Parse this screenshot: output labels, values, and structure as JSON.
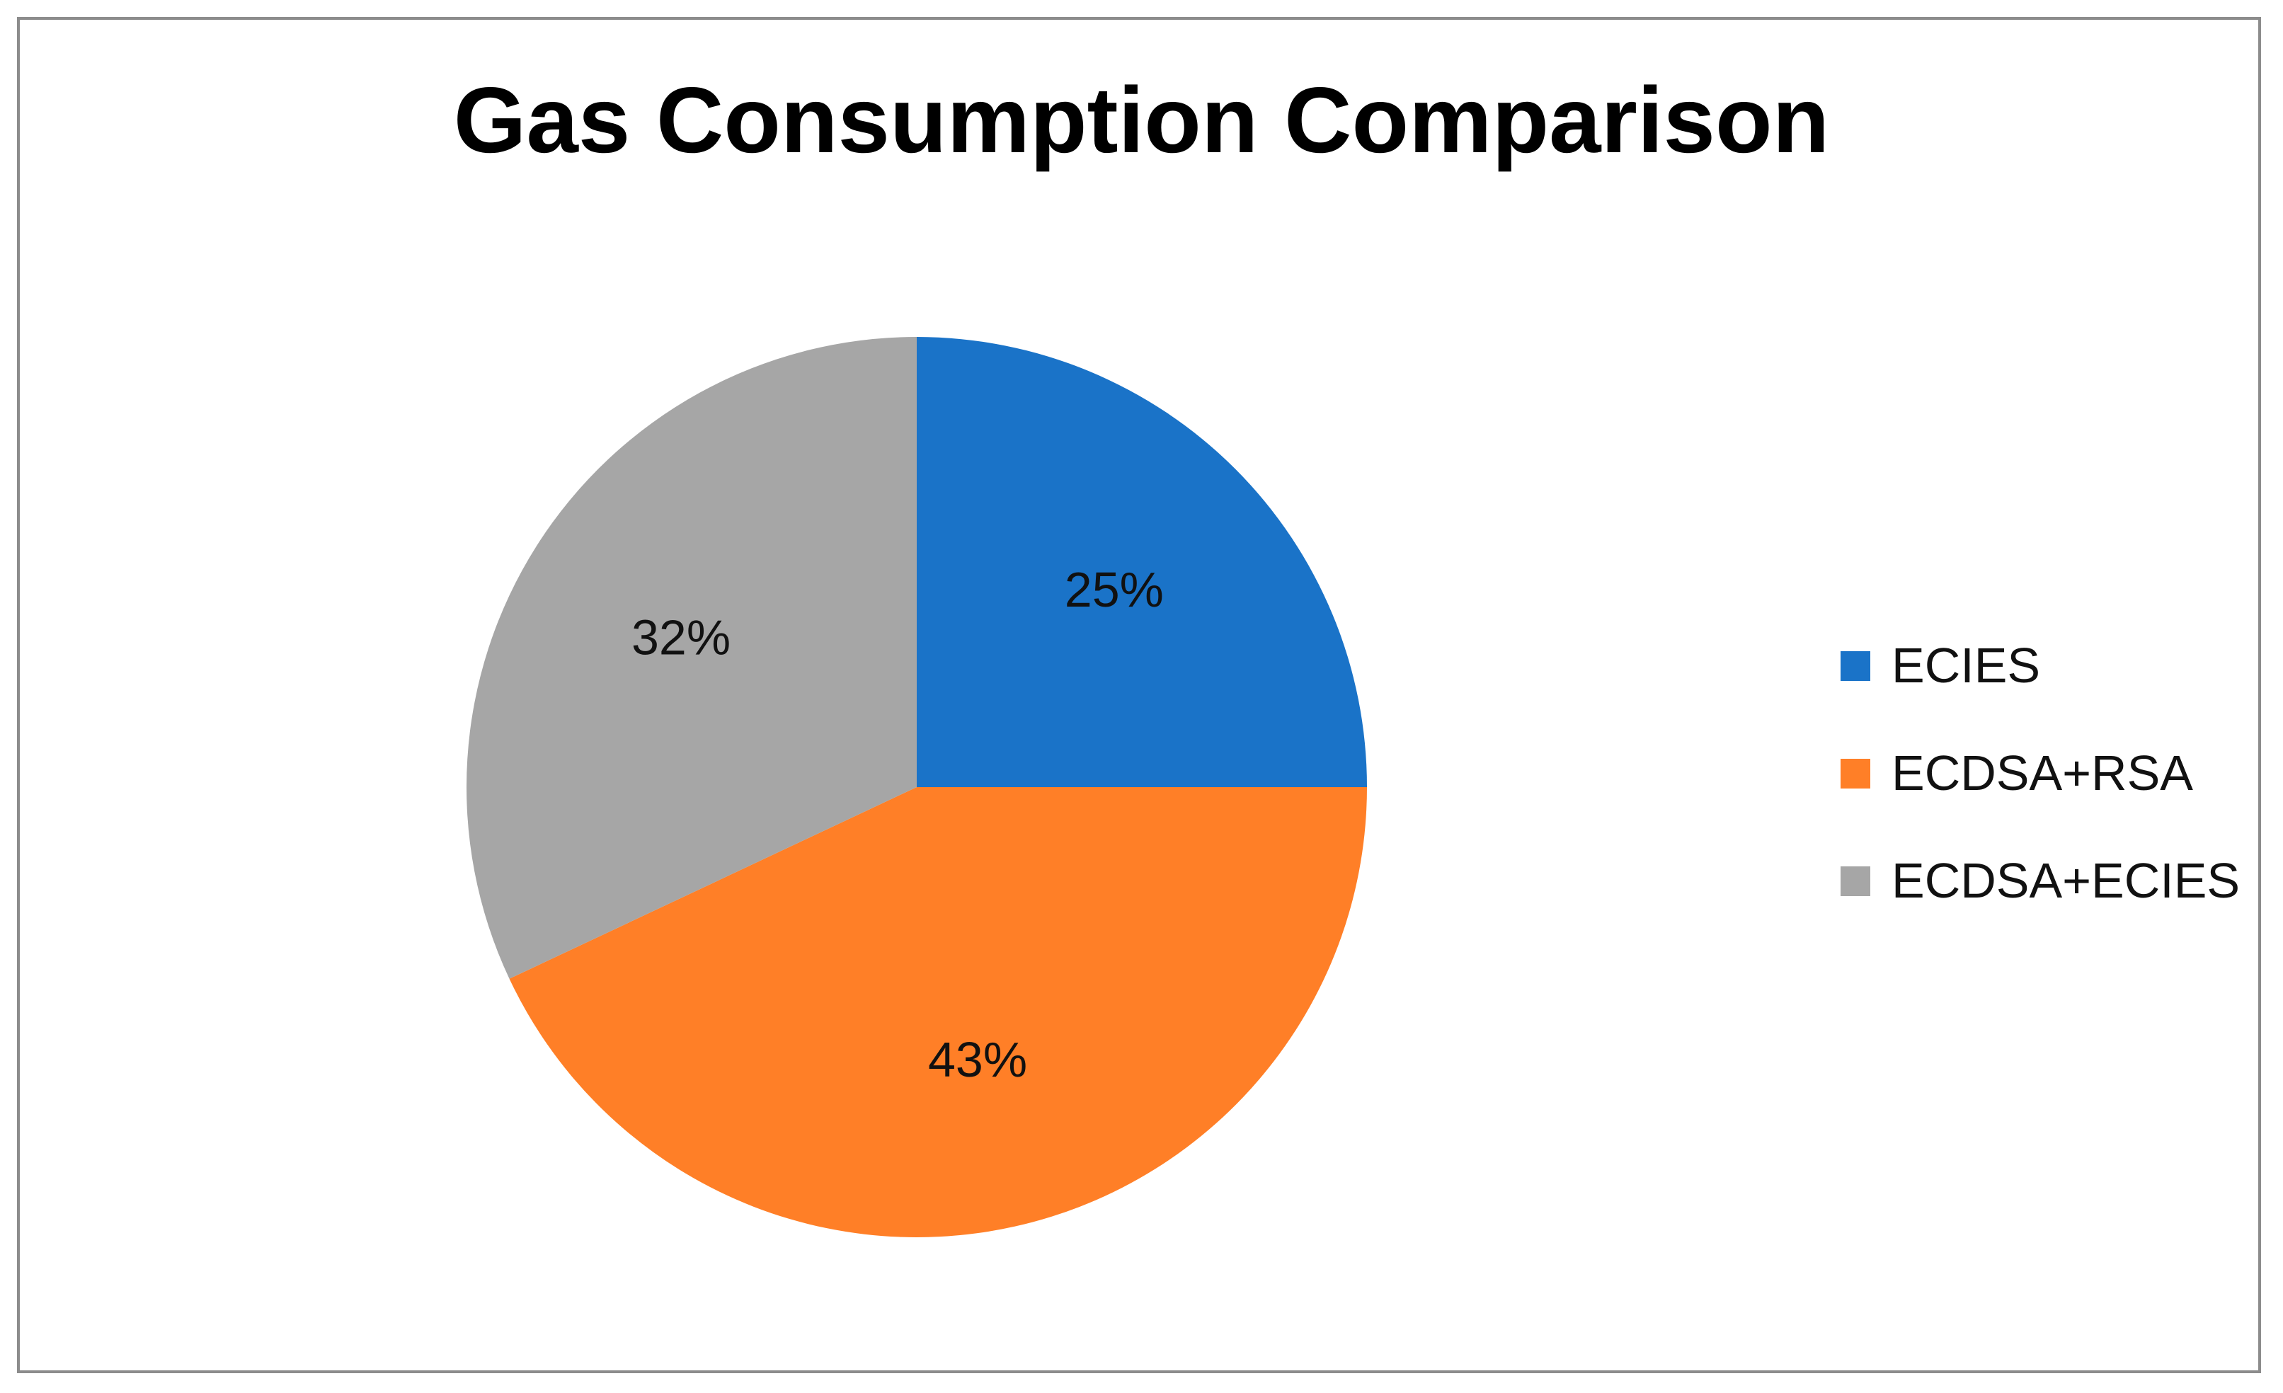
{
  "chart_data": {
    "type": "pie",
    "title": "Gas Consumption Comparison",
    "categories": [
      "ECIES",
      "ECDSA+RSA",
      "ECDSA+ECIES"
    ],
    "values": [
      25,
      43,
      32
    ],
    "data_labels": [
      "25%",
      "43%",
      "32%"
    ],
    "colors": [
      "#1a73c8",
      "#ff7f27",
      "#a6a6a6"
    ],
    "legend_position": "right"
  }
}
